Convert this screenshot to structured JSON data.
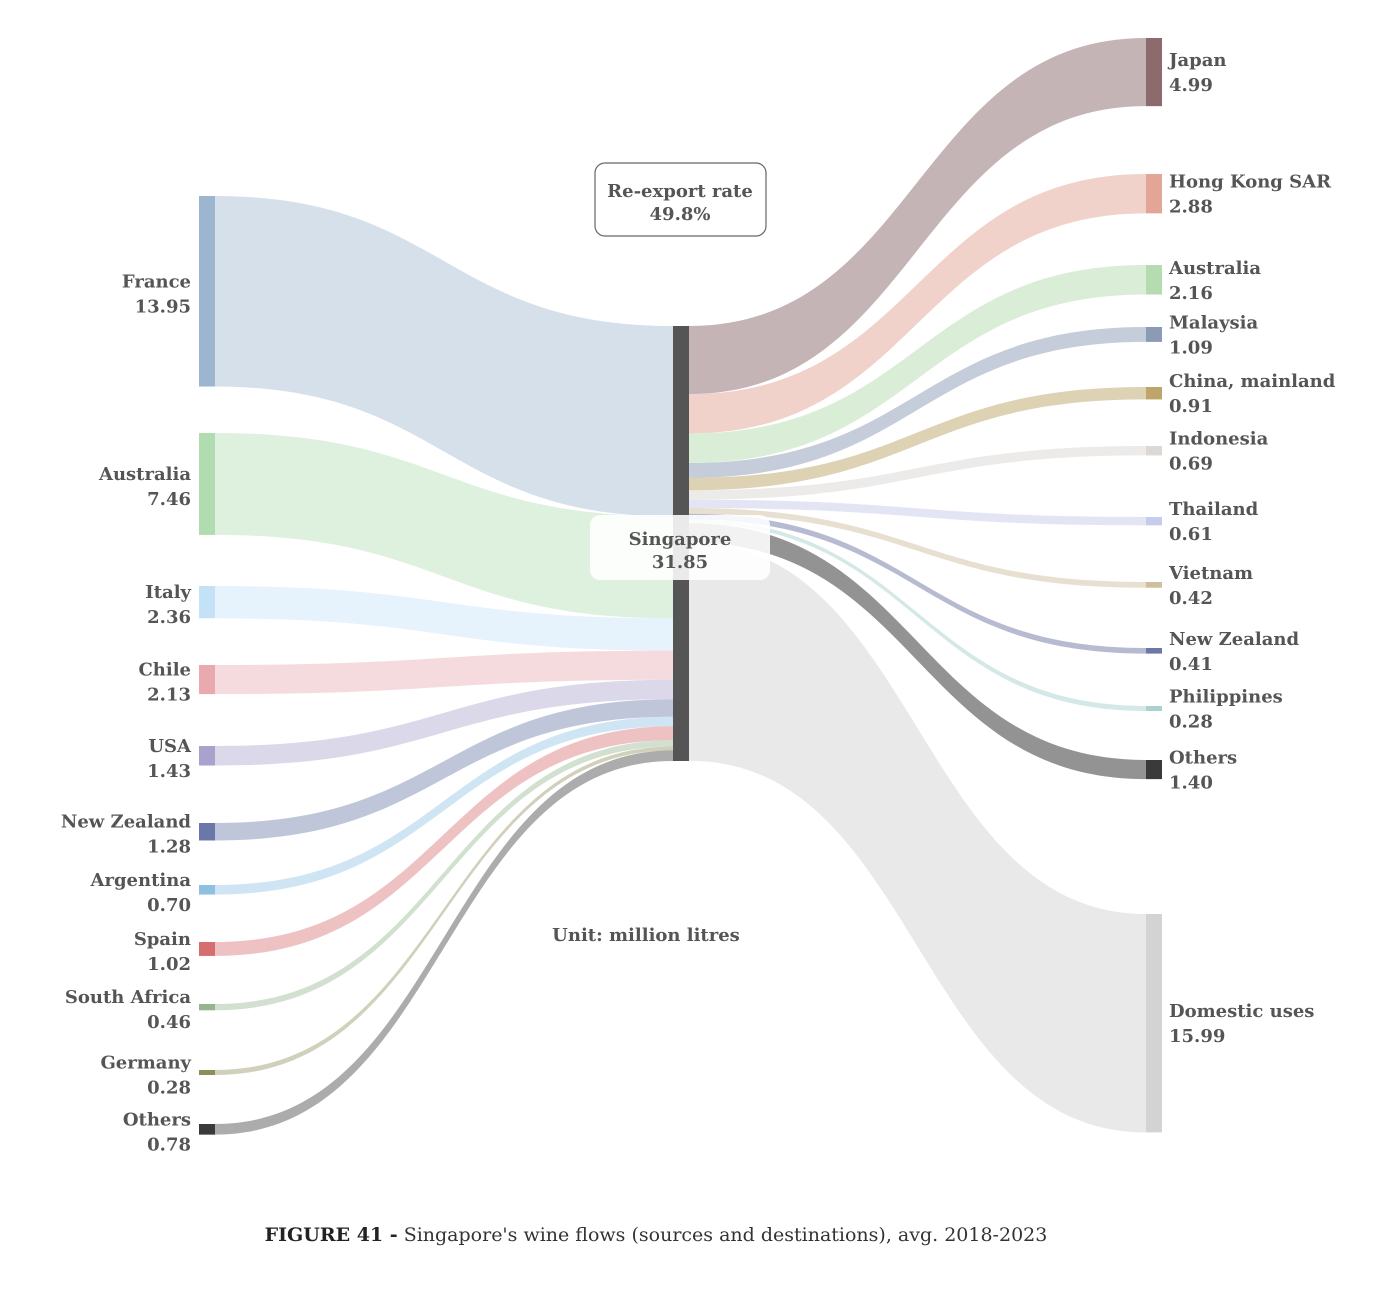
{
  "chart_data": {
    "type": "sankey",
    "hub": {
      "name": "Singapore",
      "value": "31.85",
      "color": "#555555"
    },
    "reexport": {
      "label": "Re-export rate",
      "value": "49.8%"
    },
    "unit": "Unit: million litres",
    "sources": [
      {
        "name": "France",
        "value": 13.95,
        "value_label": "13.95",
        "color": "#9db6cf"
      },
      {
        "name": "Australia",
        "value": 7.46,
        "value_label": "7.46",
        "color": "#b1dcb0"
      },
      {
        "name": "Italy",
        "value": 2.36,
        "value_label": "2.36",
        "color": "#c3e1f7"
      },
      {
        "name": "Chile",
        "value": 2.13,
        "value_label": "2.13",
        "color": "#e8aaaf"
      },
      {
        "name": "USA",
        "value": 1.43,
        "value_label": "1.43",
        "color": "#a9a2cc"
      },
      {
        "name": "New Zealand",
        "value": 1.28,
        "value_label": "1.28",
        "color": "#6a77a8"
      },
      {
        "name": "Argentina",
        "value": 0.7,
        "value_label": "0.70",
        "color": "#8ec0e2"
      },
      {
        "name": "Spain",
        "value": 1.02,
        "value_label": "1.02",
        "color": "#d66d6f"
      },
      {
        "name": "South Africa",
        "value": 0.46,
        "value_label": "0.46",
        "color": "#94b58d"
      },
      {
        "name": "Germany",
        "value": 0.28,
        "value_label": "0.28",
        "color": "#8e8e5c"
      },
      {
        "name": "Others",
        "value": 0.78,
        "value_label": "0.78",
        "color": "#3a3a3a"
      }
    ],
    "destinations": [
      {
        "name": "Japan",
        "value": 4.99,
        "value_label": "4.99",
        "color": "#8c6a6d"
      },
      {
        "name": "Hong Kong SAR",
        "value": 2.88,
        "value_label": "2.88",
        "color": "#e2a596"
      },
      {
        "name": "Australia",
        "value": 2.16,
        "value_label": "2.16",
        "color": "#b5dbb0"
      },
      {
        "name": "Malaysia",
        "value": 1.09,
        "value_label": "1.09",
        "color": "#8b9ab5"
      },
      {
        "name": "China, mainland",
        "value": 0.91,
        "value_label": "0.91",
        "color": "#bea56c"
      },
      {
        "name": "Indonesia",
        "value": 0.69,
        "value_label": "0.69",
        "color": "#dcd8d6"
      },
      {
        "name": "Thailand",
        "value": 0.61,
        "value_label": "0.61",
        "color": "#c7ccec"
      },
      {
        "name": "Vietnam",
        "value": 0.42,
        "value_label": "0.42",
        "color": "#cfbf9f"
      },
      {
        "name": "New Zealand",
        "value": 0.41,
        "value_label": "0.41",
        "color": "#6d78a6"
      },
      {
        "name": "Philippines",
        "value": 0.28,
        "value_label": "0.28",
        "color": "#a9d2d0"
      },
      {
        "name": "Others",
        "value": 1.4,
        "value_label": "1.40",
        "color": "#3a3a3a"
      },
      {
        "name": "Domestic uses",
        "value": 15.99,
        "value_label": "15.99",
        "color": "#d3d3d3"
      }
    ]
  },
  "caption": {
    "figure": "FIGURE 41 -",
    "text": "Singapore's wine flows (sources and destinations), avg. 2018-2023"
  }
}
